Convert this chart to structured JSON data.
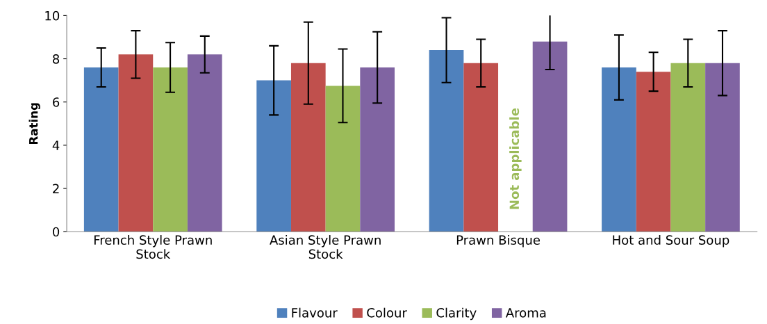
{
  "chart_data": {
    "type": "bar",
    "ylabel": "Rating",
    "categories": [
      "French Style Prawn Stock",
      "Asian Style Prawn Stock",
      "Prawn Bisque",
      "Hot and Sour Soup"
    ],
    "series": [
      {
        "name": "Flavour",
        "color": "#4f81bd",
        "values": [
          7.6,
          7.0,
          8.4,
          7.6
        ],
        "errors": [
          0.9,
          1.6,
          1.5,
          1.5
        ]
      },
      {
        "name": "Colour",
        "color": "#c0504d",
        "values": [
          8.2,
          7.8,
          7.8,
          7.4
        ],
        "errors": [
          1.1,
          1.9,
          1.1,
          0.9
        ]
      },
      {
        "name": "Clarity",
        "color": "#9bbb59",
        "values": [
          7.6,
          6.75,
          0,
          7.8
        ],
        "errors": [
          1.15,
          1.7,
          null,
          1.1
        ]
      },
      {
        "name": "Aroma",
        "color": "#8064a2",
        "values": [
          8.2,
          7.6,
          8.8,
          7.8
        ],
        "errors": [
          0.85,
          1.65,
          1.3,
          1.5
        ]
      }
    ],
    "annotations": [
      {
        "text": "Not applicable",
        "x": "Prawn Bisque"
      }
    ],
    "ylim": [
      0,
      10
    ],
    "yticks": [
      0,
      2,
      4,
      6,
      8,
      10
    ],
    "grid": false,
    "legend": "bottom"
  }
}
